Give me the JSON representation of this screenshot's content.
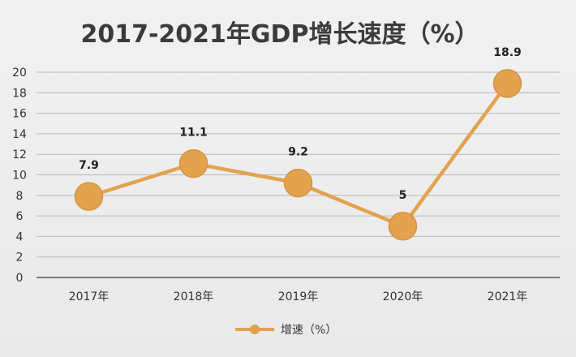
{
  "chart_data": {
    "type": "line",
    "title": "2017-2021年GDP增长速度（%）",
    "categories": [
      "2017年",
      "2018年",
      "2019年",
      "2020年",
      "2021年"
    ],
    "series": [
      {
        "name": "增速（%）",
        "values": [
          7.9,
          11.1,
          9.2,
          5,
          18.9
        ],
        "color": "#E2A24E"
      }
    ],
    "data_labels": [
      "7.9",
      "11.1",
      "9.2",
      "5",
      "18.9"
    ],
    "y_ticks": [
      "0",
      "2",
      "4",
      "6",
      "8",
      "10",
      "12",
      "14",
      "16",
      "18",
      "20"
    ],
    "ylim": [
      0,
      20
    ],
    "grid": true,
    "legend_position": "bottom"
  }
}
